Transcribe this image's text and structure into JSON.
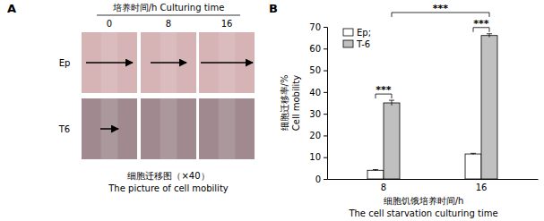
{
  "figure": {
    "panel_label": "A",
    "header": "培养时间/h Culturing time",
    "columns": [
      "0",
      "8",
      "16"
    ],
    "rows": [
      "Ep",
      "T6"
    ],
    "caption": [
      "细胞迁移图（×40）",
      "The picture of cell mobility"
    ]
  },
  "chart_data": {
    "type": "bar",
    "panel_label": "B",
    "categories": [
      "8",
      "16"
    ],
    "series": [
      {
        "name": "Ep;",
        "color": "#ffffff",
        "values": [
          4,
          11.5
        ],
        "errors": [
          0.3,
          0.3
        ]
      },
      {
        "name": "T-6",
        "color": "#c0c0c0",
        "values": [
          35,
          66
        ],
        "errors": [
          1.2,
          0.8
        ]
      }
    ],
    "ylim": [
      0,
      70
    ],
    "yticks": [
      0,
      10,
      20,
      30,
      40,
      50,
      60,
      70
    ],
    "y_label": [
      "细胞迁移率/%",
      "Cell mobility"
    ],
    "x_label": [
      "细胞饥饿培养时间/h",
      "The cell starvation culturing time"
    ],
    "annotations": [
      "***",
      "***",
      "***"
    ],
    "legend": "top-left",
    "grid": false
  }
}
